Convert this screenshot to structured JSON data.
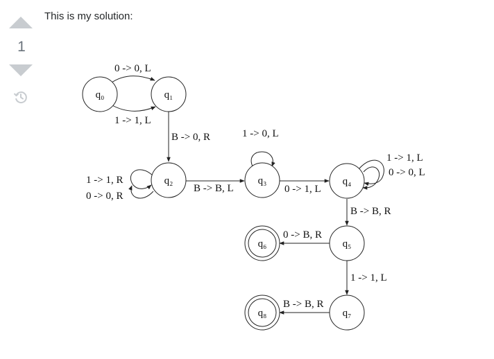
{
  "post": {
    "vote_count": "1",
    "text": "This is my solution:"
  },
  "icons": {
    "upvote": "triangle-up-icon",
    "downvote": "triangle-down-icon",
    "history": "history-icon"
  },
  "colors": {
    "vote_arrow": "#c8ccd0",
    "vote_count": "#6a737c",
    "text": "#242729",
    "diagram_stroke": "#222222"
  },
  "diagram": {
    "states": {
      "q0": "q₀",
      "q1": "q₁",
      "q2": "q₂",
      "q3": "q₃",
      "q4": "q₄",
      "q5": "q₅",
      "q6": "q₆",
      "q7": "q₇",
      "q8": "q₈"
    },
    "final_states": [
      "q6",
      "q8"
    ],
    "transitions": {
      "q0_q1_top": "0 -> 0, L",
      "q0_q1_bottom": "1 -> 1, L",
      "q1_q2": "B -> 0, R",
      "q2_self_1": "1 -> 1, R",
      "q2_self_2": "0 -> 0, R",
      "q2_q3": "B -> B, L",
      "q3_self": "1 -> 0, L",
      "q3_q4": "0 -> 1, L",
      "q4_self_1": "1 -> 1, L",
      "q4_self_2": "0 -> 0, L",
      "q4_q5": "B -> B, R",
      "q5_q6": "0 -> B, R",
      "q5_q7": "1 -> 1, L",
      "q7_q8": "B -> B, R"
    }
  }
}
